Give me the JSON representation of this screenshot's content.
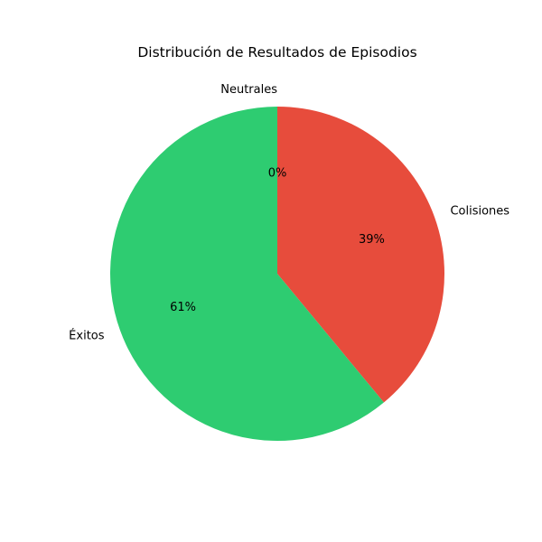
{
  "chart_data": {
    "type": "pie",
    "title": "Distribución de Resultados de Episodios",
    "slices": [
      {
        "label": "Neutrales",
        "value": 0,
        "pct_label": "0%",
        "color": "#95a5a6"
      },
      {
        "label": "Colisiones",
        "value": 39,
        "pct_label": "39%",
        "color": "#e74c3c"
      },
      {
        "label": "Éxitos",
        "value": 61,
        "pct_label": "61%",
        "color": "#2ecc71"
      }
    ],
    "start_angle": "top",
    "direction": "clockwise",
    "legend": "none"
  }
}
